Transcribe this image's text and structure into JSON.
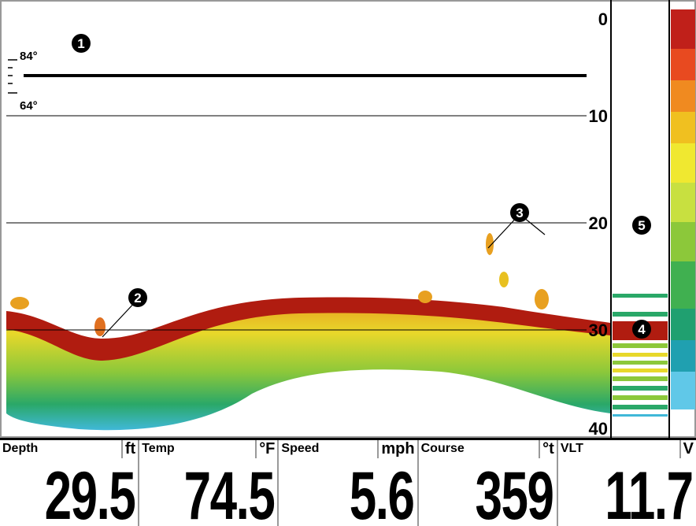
{
  "depth_scale": [
    "0",
    "10",
    "20",
    "30",
    "40"
  ],
  "temperature_scale": [
    "84°",
    "64°"
  ],
  "callouts": [
    "1",
    "2",
    "3",
    "4",
    "5"
  ],
  "readouts": [
    {
      "label": "Depth",
      "unit": "ft",
      "value": "29.5"
    },
    {
      "label": "Temp",
      "unit": "°F",
      "value": "74.5"
    },
    {
      "label": "Speed",
      "unit": "mph",
      "value": "5.6"
    },
    {
      "label": "Course",
      "unit": "°t",
      "value": "359"
    },
    {
      "label": "VLT",
      "unit": "V",
      "value": "11.7"
    }
  ]
}
